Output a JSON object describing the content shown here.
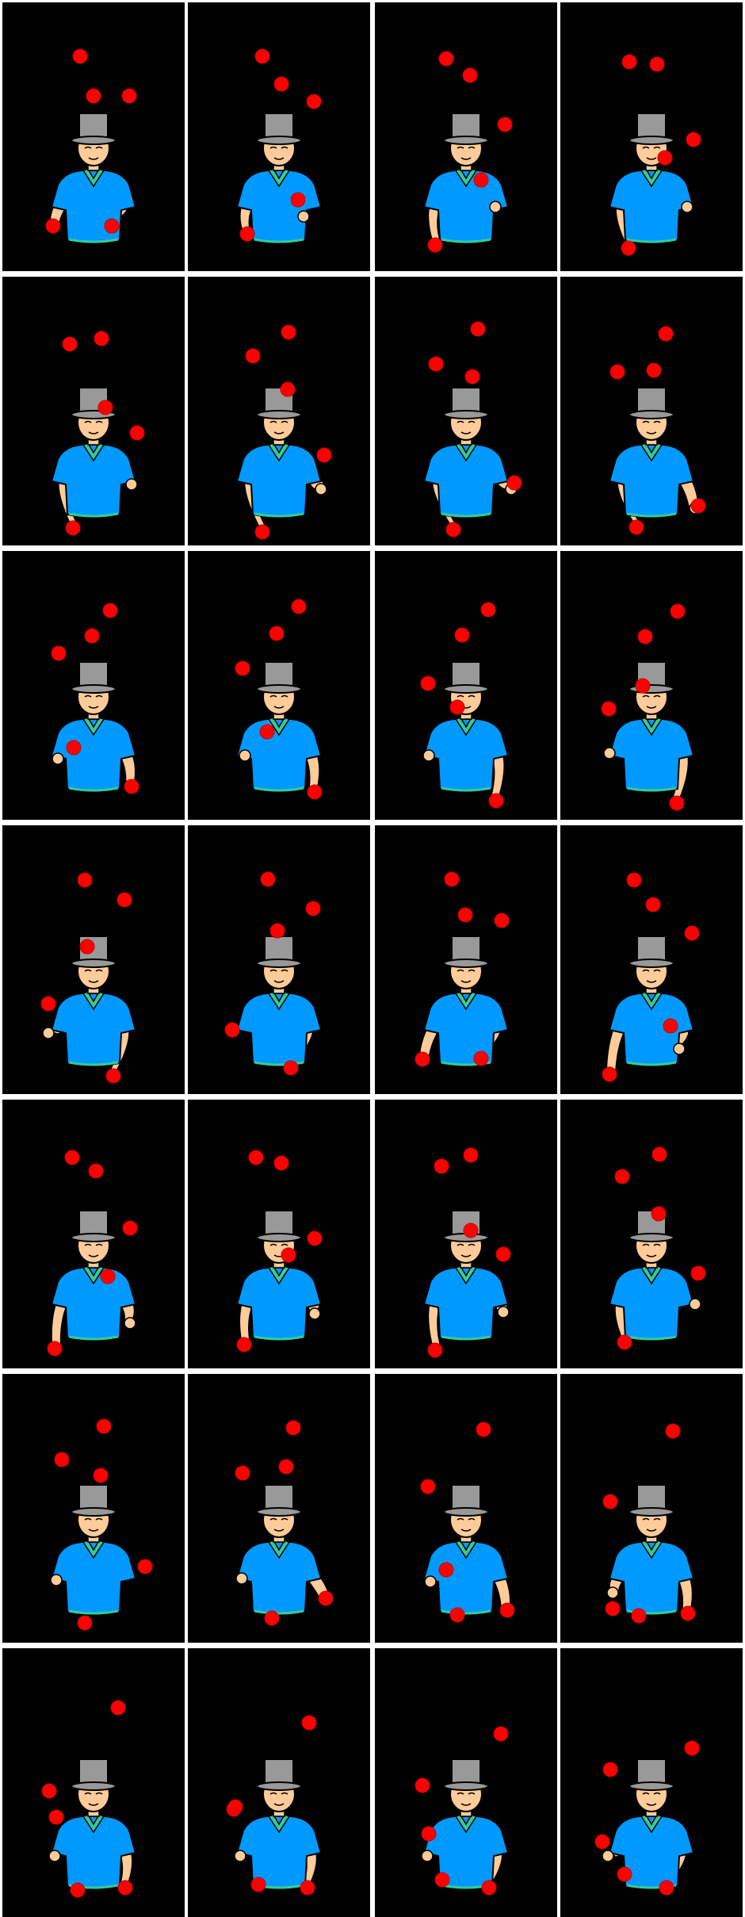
{
  "sheet": {
    "columns": 4,
    "rows": 7,
    "background": "#ffffff",
    "frame_background": "#000000"
  },
  "colors": {
    "ball": "#ff0000",
    "ball_edge": "#cc0000",
    "hat": "#999999",
    "shirt": "#0099ff",
    "collar": "#33cc99",
    "skin": "#ffcc99",
    "outline": "#000000"
  },
  "figure": {
    "hat_icon": "top-hat",
    "shirt_icon": "polo-shirt"
  },
  "frames": [
    {
      "index": 1
    },
    {
      "index": 2
    },
    {
      "index": 3
    },
    {
      "index": 4
    },
    {
      "index": 5
    },
    {
      "index": 6
    },
    {
      "index": 7
    },
    {
      "index": 8
    },
    {
      "index": 9
    },
    {
      "index": 10
    },
    {
      "index": 11
    },
    {
      "index": 12
    },
    {
      "index": 13
    },
    {
      "index": 14
    },
    {
      "index": 15
    },
    {
      "index": 16
    },
    {
      "index": 17
    },
    {
      "index": 18
    },
    {
      "index": 19
    },
    {
      "index": 20
    },
    {
      "index": 21
    },
    {
      "index": 22
    },
    {
      "index": 23
    },
    {
      "index": 24
    },
    {
      "index": 25
    },
    {
      "index": 26
    },
    {
      "index": 27
    },
    {
      "index": 28
    }
  ]
}
